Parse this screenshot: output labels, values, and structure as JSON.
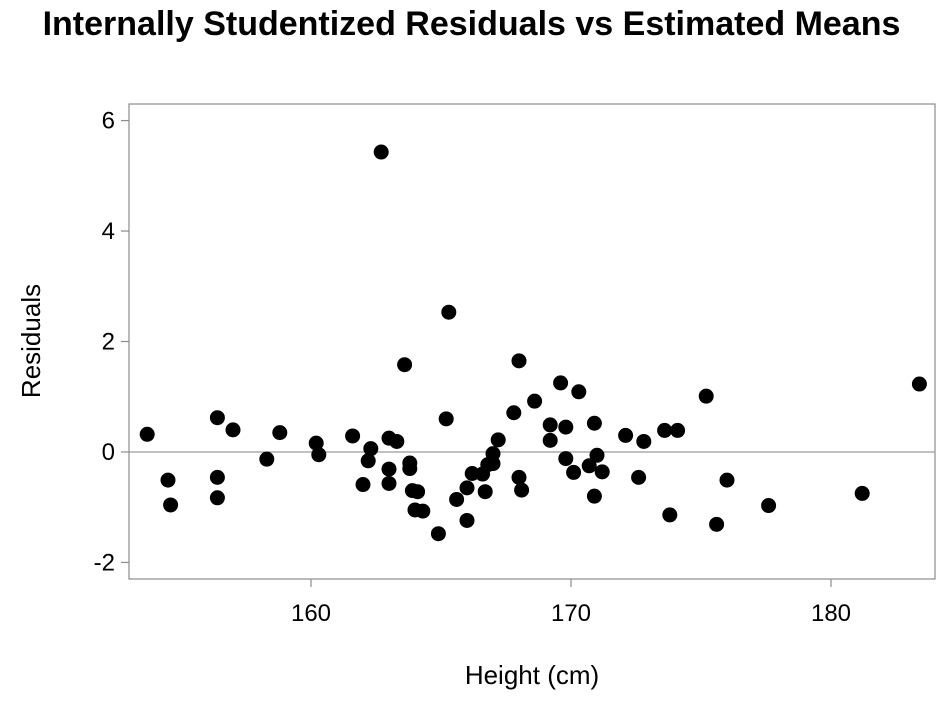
{
  "chart_data": {
    "type": "scatter",
    "title": "Internally Studentized Residuals vs Estimated Means",
    "xlabel": "Height (cm)",
    "ylabel": "Residuals",
    "xlim": [
      153,
      184
    ],
    "ylim": [
      -2.3,
      6.3
    ],
    "xticks": [
      160,
      170,
      180
    ],
    "yticks": [
      6,
      4,
      2,
      0,
      -2
    ],
    "xtick_labels": [
      "160",
      "170",
      "180"
    ],
    "ytick_labels": [
      "6",
      "4",
      "2",
      "0",
      "-2"
    ],
    "reference_line_y": 0,
    "grid": false,
    "point_color": "#000000",
    "points": [
      [
        153.7,
        0.32
      ],
      [
        154.5,
        -0.51
      ],
      [
        154.6,
        -0.96
      ],
      [
        156.4,
        0.62
      ],
      [
        156.4,
        -0.46
      ],
      [
        156.4,
        -0.83
      ],
      [
        157.0,
        0.4
      ],
      [
        158.3,
        -0.13
      ],
      [
        158.8,
        0.35
      ],
      [
        160.2,
        0.16
      ],
      [
        160.3,
        -0.05
      ],
      [
        161.6,
        0.29
      ],
      [
        162.0,
        -0.59
      ],
      [
        162.2,
        -0.16
      ],
      [
        162.3,
        0.06
      ],
      [
        162.7,
        5.43
      ],
      [
        163.0,
        0.25
      ],
      [
        163.0,
        -0.31
      ],
      [
        163.0,
        -0.57
      ],
      [
        163.3,
        0.19
      ],
      [
        163.6,
        1.58
      ],
      [
        163.8,
        -0.2
      ],
      [
        163.8,
        -0.3
      ],
      [
        163.9,
        -0.7
      ],
      [
        164.0,
        -1.05
      ],
      [
        164.1,
        -0.72
      ],
      [
        164.3,
        -1.07
      ],
      [
        164.9,
        -1.48
      ],
      [
        165.2,
        0.6
      ],
      [
        165.3,
        2.53
      ],
      [
        165.6,
        -0.86
      ],
      [
        166.0,
        -1.24
      ],
      [
        166.0,
        -0.65
      ],
      [
        166.2,
        -0.39
      ],
      [
        166.6,
        -0.4
      ],
      [
        166.7,
        -0.72
      ],
      [
        166.8,
        -0.23
      ],
      [
        167.0,
        -0.03
      ],
      [
        167.0,
        -0.21
      ],
      [
        167.2,
        0.22
      ],
      [
        167.8,
        0.71
      ],
      [
        168.0,
        1.65
      ],
      [
        168.0,
        -0.46
      ],
      [
        168.1,
        -0.69
      ],
      [
        168.6,
        0.92
      ],
      [
        169.2,
        0.49
      ],
      [
        169.2,
        0.21
      ],
      [
        169.6,
        1.25
      ],
      [
        169.8,
        0.45
      ],
      [
        169.8,
        -0.12
      ],
      [
        170.1,
        -0.37
      ],
      [
        170.3,
        1.09
      ],
      [
        170.7,
        -0.25
      ],
      [
        170.9,
        -0.8
      ],
      [
        170.9,
        0.52
      ],
      [
        171.0,
        -0.06
      ],
      [
        171.2,
        -0.36
      ],
      [
        172.1,
        0.3
      ],
      [
        172.6,
        -0.46
      ],
      [
        172.8,
        0.19
      ],
      [
        173.6,
        0.39
      ],
      [
        173.8,
        -1.14
      ],
      [
        174.1,
        0.39
      ],
      [
        175.2,
        1.01
      ],
      [
        175.6,
        -1.31
      ],
      [
        176.0,
        -0.51
      ],
      [
        177.6,
        -0.97
      ],
      [
        181.2,
        -0.75
      ],
      [
        183.4,
        1.23
      ]
    ]
  }
}
